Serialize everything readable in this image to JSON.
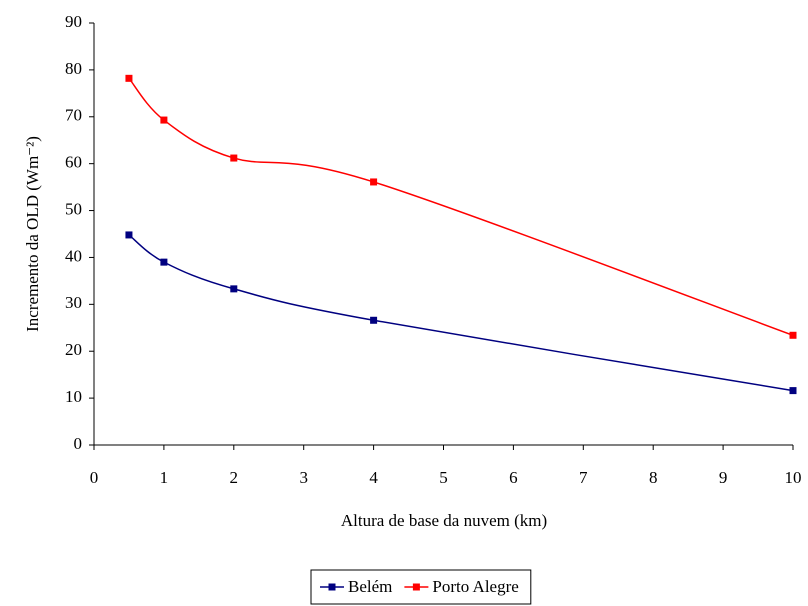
{
  "chart_data": {
    "type": "line",
    "x_label": "Altura de base da nuvem (km)",
    "y_label": "Incremento da OLD  (Wm⁻²)",
    "x": [
      0.5,
      1,
      2,
      4,
      10
    ],
    "series": [
      {
        "name": "Belém",
        "color": "#000080",
        "values": [
          44.8,
          39.0,
          33.3,
          26.6,
          11.6
        ]
      },
      {
        "name": "Porto Alegre",
        "color": "#ff0000",
        "values": [
          78.2,
          69.3,
          61.2,
          56.1,
          23.4
        ]
      }
    ],
    "xlim": [
      0,
      10
    ],
    "xticks": [
      0,
      1,
      2,
      3,
      4,
      5,
      6,
      7,
      8,
      9,
      10
    ],
    "ylim": [
      0,
      90
    ],
    "yticks": [
      0,
      10,
      20,
      30,
      40,
      50,
      60,
      70,
      80,
      90
    ],
    "grid": false,
    "smooth": true,
    "legend": "bottom"
  }
}
